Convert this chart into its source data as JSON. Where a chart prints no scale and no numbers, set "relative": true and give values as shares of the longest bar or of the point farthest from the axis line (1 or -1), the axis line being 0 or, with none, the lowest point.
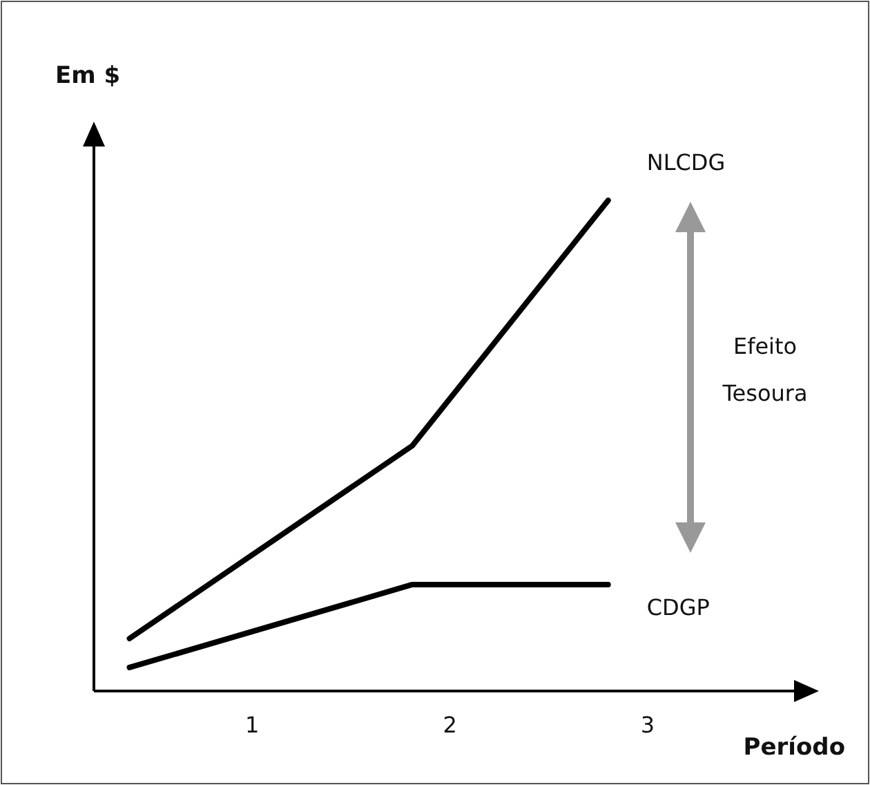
{
  "chart_data": {
    "type": "line",
    "relative": true,
    "ylabel": "Em $",
    "xlabel": "Período",
    "xlim": [
      0.2,
      3.74
    ],
    "xticks": [
      1,
      2,
      3
    ],
    "series": [
      {
        "name": "NLCDG",
        "color": "#000000",
        "x": [
          0.38,
          1.81,
          2.8
        ],
        "values": [
          0.107,
          0.5,
          1
        ]
      },
      {
        "name": "CDGP",
        "color": "#000000",
        "x": [
          0.38,
          1.81,
          2.8
        ],
        "values": [
          0.048,
          0.217,
          0.217
        ]
      }
    ],
    "annotations": [
      "Efeito Tesoura"
    ],
    "grid": false,
    "marker": "none",
    "line_style": "solid"
  }
}
